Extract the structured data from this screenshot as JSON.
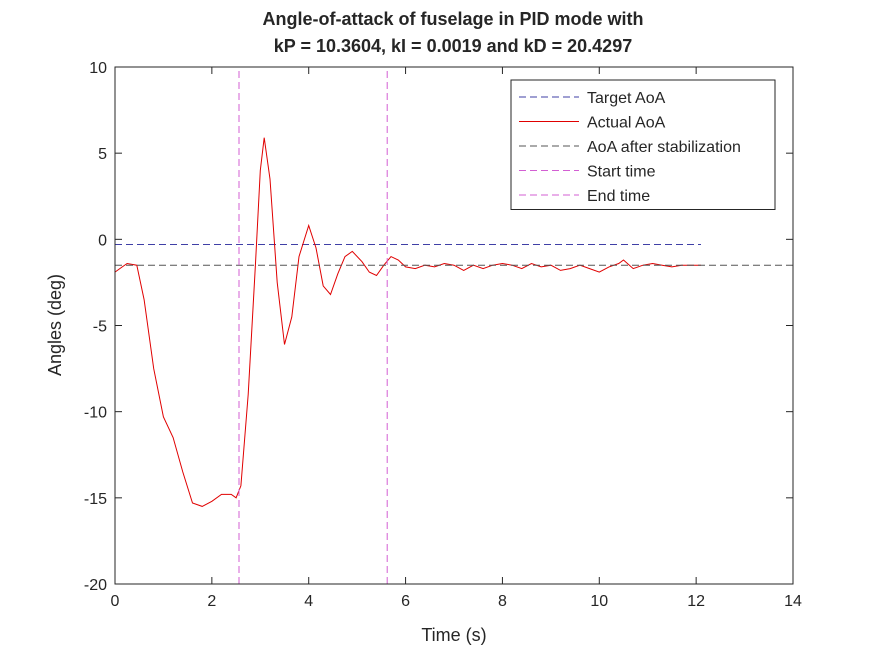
{
  "chart_data": {
    "type": "line",
    "title": "Angle-of-attack of fuselage in PID mode with",
    "subtitle": "kP = 10.3604, kI = 0.0019 and kD = 20.4297",
    "xlabel": "Time (s)",
    "ylabel": "Angles (deg)",
    "xlim": [
      0,
      14
    ],
    "ylim": [
      -20,
      10
    ],
    "xticks": [
      0,
      2,
      4,
      6,
      8,
      10,
      12,
      14
    ],
    "yticks": [
      -20,
      -15,
      -10,
      -5,
      0,
      5,
      10
    ],
    "grid": false,
    "legend_position": "top-right",
    "series": [
      {
        "name": "Target AoA",
        "style": "dashed",
        "color": "#3f3fa6",
        "x": [
          0,
          12.1
        ],
        "y": [
          -0.3,
          -0.3
        ]
      },
      {
        "name": "Actual AoA",
        "style": "solid",
        "color": "#e00000",
        "x": [
          0,
          0.1,
          0.25,
          0.45,
          0.6,
          0.8,
          1.0,
          1.2,
          1.4,
          1.6,
          1.8,
          2.0,
          2.2,
          2.4,
          2.5,
          2.6,
          2.75,
          2.9,
          3.0,
          3.08,
          3.2,
          3.35,
          3.5,
          3.65,
          3.8,
          4.0,
          4.15,
          4.3,
          4.45,
          4.6,
          4.75,
          4.9,
          5.1,
          5.25,
          5.4,
          5.55,
          5.7,
          5.85,
          6.0,
          6.2,
          6.4,
          6.6,
          6.8,
          7.0,
          7.2,
          7.4,
          7.6,
          7.8,
          8.0,
          8.2,
          8.4,
          8.6,
          8.8,
          9.0,
          9.2,
          9.4,
          9.6,
          9.8,
          10.0,
          10.2,
          10.4,
          10.5,
          10.7,
          10.9,
          11.1,
          11.3,
          11.5,
          11.7,
          11.9,
          12.1
        ],
        "y": [
          -1.9,
          -1.7,
          -1.4,
          -1.5,
          -3.5,
          -7.5,
          -10.3,
          -11.5,
          -13.5,
          -15.3,
          -15.5,
          -15.2,
          -14.8,
          -14.8,
          -15.0,
          -14.3,
          -9.0,
          -1.5,
          4.0,
          5.9,
          3.5,
          -2.5,
          -6.1,
          -4.5,
          -1.0,
          0.8,
          -0.5,
          -2.7,
          -3.2,
          -2.0,
          -1.0,
          -0.7,
          -1.3,
          -1.9,
          -2.1,
          -1.5,
          -1.0,
          -1.2,
          -1.6,
          -1.7,
          -1.5,
          -1.6,
          -1.4,
          -1.5,
          -1.8,
          -1.5,
          -1.7,
          -1.5,
          -1.4,
          -1.5,
          -1.7,
          -1.4,
          -1.6,
          -1.5,
          -1.8,
          -1.7,
          -1.5,
          -1.7,
          -1.9,
          -1.6,
          -1.4,
          -1.2,
          -1.7,
          -1.5,
          -1.4,
          -1.5,
          -1.6,
          -1.5,
          -1.5,
          -1.5
        ]
      },
      {
        "name": "AoA after stabilization",
        "style": "dashed",
        "color": "#555555",
        "x": [
          0,
          14
        ],
        "y": [
          -1.5,
          -1.5
        ]
      },
      {
        "name": "Start time",
        "style": "dashed",
        "color": "#d35fd3",
        "x": [
          2.56,
          2.56
        ],
        "y": [
          -20,
          10
        ]
      },
      {
        "name": "End time",
        "style": "dashed",
        "color": "#d35fd3",
        "x": [
          5.62,
          5.62
        ],
        "y": [
          -20,
          10
        ]
      }
    ]
  }
}
